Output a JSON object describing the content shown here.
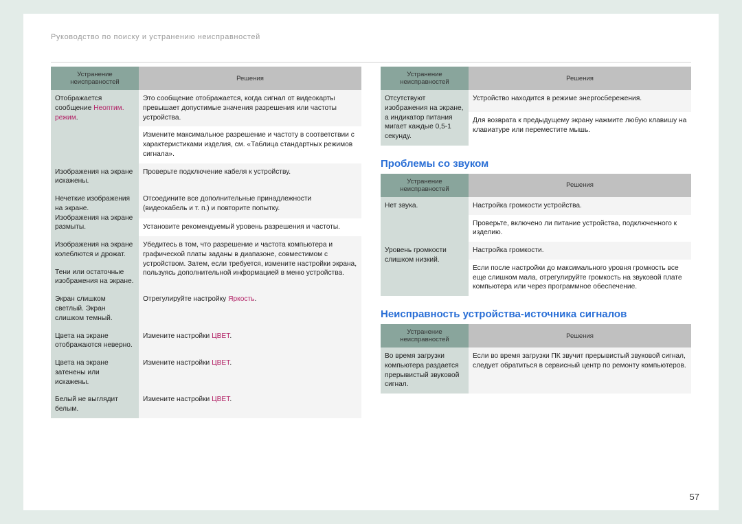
{
  "breadcrumb": "Руководство по поиску и устранению неисправностей",
  "page_number": "57",
  "headers": {
    "problem": "Устранение\nнеисправностей",
    "solution": "Решения"
  },
  "colors": {
    "page_bg": "#e3ece8",
    "hprob_bg": "#89a59c",
    "hsol_bg": "#c0c0c0",
    "prob_bg": "#d2dcd8",
    "section_title": "#2a6fd6",
    "highlight": "#b22266"
  },
  "left_table": {
    "rows": [
      {
        "problem": [
          {
            "t": "Отображается сообщение "
          },
          {
            "t": "Неоптим. режим",
            "hl": true
          },
          {
            "t": "."
          }
        ],
        "solutions": [
          "Это сообщение отображается, когда сигнал от видеокарты превышает допустимые значения разрешения или частоты устройства.",
          "Измените максимальное разрешение и частоту в соответствии с характеристиками изделия, см. «Таблица стандартных режимов сигнала»."
        ]
      },
      {
        "problem": [
          {
            "t": "Изображения на экране искажены."
          }
        ],
        "solutions": [
          "Проверьте подключение кабеля к устройству."
        ]
      },
      {
        "problem": [
          {
            "t": "Нечеткие изображения на экране. Изображения на экране размыты."
          }
        ],
        "solutions": [
          "Отсоедините все дополнительные принадлежности (видеокабель и т. п.) и повторите попытку.",
          "Установите рекомендуемый уровень разрешения и частоты."
        ]
      },
      {
        "problem_rows": [
          [
            {
              "t": "Изображения на экране колеблются и дрожат."
            }
          ],
          [
            {
              "t": "Тени или остаточные изображения на экране."
            }
          ]
        ],
        "solutions": [
          "Убедитесь в том, что разрешение и частота компьютера и графической платы заданы в диапазоне, совместимом с устройством. Затем, если требуется, измените настройки экрана, пользуясь дополнительной информацией в меню устройства."
        ]
      },
      {
        "problem": [
          {
            "t": "Экран слишком светлый. Экран слишком темный."
          }
        ],
        "solutions": [
          [
            {
              "t": "Отрегулируйте настройку "
            },
            {
              "t": "Яркость",
              "hl": true
            },
            {
              "t": "."
            }
          ]
        ]
      },
      {
        "problem": [
          {
            "t": "Цвета на экране отображаются неверно."
          }
        ],
        "solutions": [
          [
            {
              "t": "Измените настройки "
            },
            {
              "t": "ЦВЕТ",
              "hl": true
            },
            {
              "t": "."
            }
          ]
        ]
      },
      {
        "problem": [
          {
            "t": "Цвета на экране затенены или искажены."
          }
        ],
        "solutions": [
          [
            {
              "t": "Измените настройки "
            },
            {
              "t": "ЦВЕТ",
              "hl": true
            },
            {
              "t": "."
            }
          ]
        ]
      },
      {
        "problem": [
          {
            "t": "Белый не выглядит белым."
          }
        ],
        "solutions": [
          [
            {
              "t": "Измените настройки "
            },
            {
              "t": "ЦВЕТ",
              "hl": true
            },
            {
              "t": "."
            }
          ]
        ]
      }
    ]
  },
  "right_top_table": {
    "rows": [
      {
        "problem": [
          {
            "t": "Отсутствуют изображения на экране, а индикатор питания мигает каждые 0,5-1 секунду."
          }
        ],
        "solutions": [
          "Устройство находится в режиме энергосбережения.",
          "Для возврата к предыдущему экрану нажмите любую клавишу на клавиатуре или переместите мышь."
        ]
      }
    ]
  },
  "section_sound": "Проблемы со звуком",
  "right_sound_table": {
    "rows": [
      {
        "problem": [
          {
            "t": "Нет звука."
          }
        ],
        "solutions": [
          "Настройка громкости устройства.",
          "Проверьте, включено ли питание устройства, подключенного к изделию."
        ]
      },
      {
        "problem": [
          {
            "t": "Уровень громкости слишком низкий."
          }
        ],
        "solutions": [
          "Настройка громкости.",
          "Если после настройки до максимального уровня громкость все еще слишком мала, отрегулируйте громкость на звуковой плате компьютера или через программное обеспечение."
        ]
      }
    ]
  },
  "section_source": "Неисправность устройства-источника сигналов",
  "right_source_table": {
    "rows": [
      {
        "problem": [
          {
            "t": "Во время загрузки компьютера раздается прерывистый звуковой сигнал."
          }
        ],
        "solutions": [
          "Если во время загрузки ПК звучит прерывистый звуковой сигнал, следует обратиться в сервисный центр по ремонту компьютеров."
        ]
      }
    ]
  }
}
